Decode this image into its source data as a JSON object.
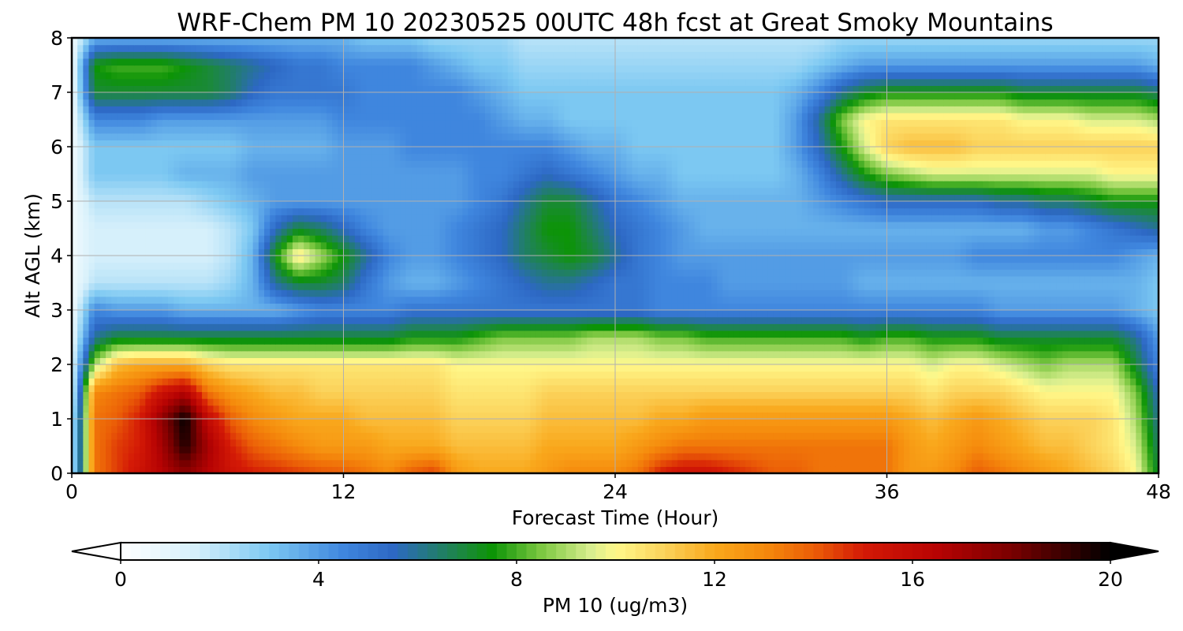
{
  "chart_data": {
    "type": "heatmap",
    "title": "WRF-Chem PM 10  20230525 00UTC 48h fcst at Great Smoky Mountains",
    "xlabel": "Forecast Time (Hour)",
    "ylabel": "Alt AGL (km)",
    "xlim": [
      0,
      48
    ],
    "ylim": [
      0,
      8
    ],
    "xticks": [
      0,
      12,
      24,
      36,
      48
    ],
    "yticks": [
      0,
      1,
      2,
      3,
      4,
      5,
      6,
      7,
      8
    ],
    "grid": true,
    "x": [
      0,
      1,
      2,
      3,
      4,
      5,
      6,
      7,
      8,
      9,
      10,
      11,
      12,
      13,
      14,
      15,
      16,
      17,
      18,
      19,
      20,
      21,
      22,
      23,
      24,
      25,
      26,
      27,
      28,
      29,
      30,
      31,
      32,
      33,
      34,
      35,
      36,
      37,
      38,
      39,
      40,
      41,
      42,
      43,
      44,
      45,
      46,
      47,
      48
    ],
    "y": [
      0,
      0.5,
      1,
      1.5,
      2,
      2.5,
      3,
      3.5,
      4,
      4.5,
      5,
      5.5,
      6,
      6.5,
      7,
      7.5,
      8
    ],
    "z": [
      [
        1.5,
        13.5,
        14.5,
        15.5,
        16.5,
        17.5,
        16.5,
        15.5,
        15.0,
        14.8,
        14.5,
        14.2,
        14.0,
        13.5,
        13.0,
        14.0,
        14.5,
        12.5,
        12.0,
        12.0,
        12.0,
        12.5,
        13.0,
        13.0,
        13.0,
        13.5,
        15.0,
        15.5,
        15.5,
        15.0,
        14.5,
        14.0,
        14.0,
        13.5,
        13.5,
        13.5,
        13.5,
        12.5,
        12.5,
        13.0,
        14.0,
        13.5,
        13.0,
        12.5,
        12.0,
        11.5,
        11.0,
        10.0,
        7.0
      ],
      [
        1.5,
        13.5,
        14.5,
        15.0,
        17.0,
        19.5,
        17.0,
        15.0,
        14.0,
        13.5,
        13.0,
        12.5,
        12.5,
        12.5,
        12.0,
        12.0,
        12.0,
        11.5,
        11.5,
        11.5,
        11.5,
        12.0,
        12.0,
        12.0,
        12.0,
        12.5,
        13.0,
        13.5,
        13.5,
        13.5,
        13.5,
        13.5,
        13.5,
        13.5,
        13.5,
        13.5,
        13.5,
        12.5,
        12.0,
        12.5,
        13.0,
        12.5,
        12.0,
        11.5,
        11.5,
        11.0,
        10.5,
        9.5,
        6.5
      ],
      [
        1.5,
        13.5,
        14.0,
        15.0,
        17.5,
        20.0,
        16.0,
        14.0,
        13.0,
        12.5,
        12.0,
        12.0,
        12.0,
        11.5,
        11.5,
        11.5,
        11.5,
        11.0,
        11.0,
        11.0,
        11.0,
        11.5,
        11.5,
        11.5,
        11.5,
        11.5,
        12.0,
        12.0,
        12.5,
        12.5,
        12.5,
        12.5,
        12.5,
        12.5,
        12.5,
        12.5,
        12.5,
        12.0,
        11.5,
        12.0,
        12.5,
        12.0,
        11.5,
        11.0,
        11.0,
        11.0,
        10.5,
        9.0,
        6.0
      ],
      [
        1.0,
        13.0,
        13.5,
        14.0,
        15.5,
        16.5,
        13.5,
        12.5,
        12.0,
        11.5,
        11.5,
        11.0,
        11.0,
        11.0,
        11.0,
        11.0,
        11.0,
        10.5,
        10.5,
        10.5,
        10.5,
        11.0,
        11.0,
        11.0,
        11.0,
        11.0,
        11.0,
        11.0,
        11.0,
        11.0,
        11.0,
        11.0,
        11.0,
        11.0,
        11.0,
        11.0,
        11.0,
        11.0,
        10.5,
        11.0,
        11.0,
        11.0,
        10.5,
        10.0,
        10.0,
        10.0,
        10.0,
        8.5,
        5.5
      ],
      [
        1.0,
        9.0,
        11.5,
        12.0,
        12.0,
        12.0,
        11.0,
        10.5,
        10.5,
        10.5,
        10.5,
        10.5,
        10.5,
        10.5,
        10.5,
        10.5,
        10.5,
        10.0,
        10.0,
        10.0,
        10.0,
        10.0,
        10.0,
        10.0,
        10.0,
        10.0,
        10.0,
        10.0,
        10.0,
        10.0,
        10.0,
        10.0,
        10.0,
        10.0,
        10.0,
        10.0,
        10.0,
        10.0,
        9.5,
        10.0,
        10.0,
        9.5,
        9.0,
        8.5,
        9.0,
        9.0,
        9.0,
        7.0,
        4.5
      ],
      [
        0.8,
        6.0,
        7.0,
        7.0,
        7.0,
        7.0,
        7.0,
        7.0,
        7.0,
        7.0,
        7.0,
        7.0,
        7.0,
        7.0,
        7.0,
        7.5,
        7.5,
        7.5,
        8.0,
        8.5,
        8.5,
        8.5,
        8.5,
        9.0,
        9.0,
        9.0,
        8.5,
        8.5,
        8.0,
        8.0,
        8.0,
        8.0,
        8.0,
        8.0,
        8.0,
        7.5,
        8.0,
        8.0,
        7.5,
        7.5,
        7.5,
        7.0,
        7.0,
        7.0,
        7.0,
        7.0,
        7.0,
        6.0,
        4.0
      ],
      [
        0.5,
        4.5,
        4.0,
        4.0,
        4.0,
        3.5,
        3.5,
        3.5,
        3.5,
        3.5,
        4.0,
        4.5,
        4.5,
        4.5,
        4.5,
        5.0,
        5.0,
        5.0,
        5.0,
        5.0,
        5.0,
        5.0,
        5.0,
        5.0,
        5.0,
        5.0,
        4.5,
        4.5,
        4.5,
        4.5,
        4.5,
        4.5,
        4.5,
        4.5,
        4.5,
        4.5,
        4.5,
        4.5,
        4.5,
        4.5,
        4.5,
        4.0,
        4.0,
        4.0,
        4.0,
        4.0,
        4.0,
        3.5,
        3.0
      ],
      [
        0.5,
        2.0,
        2.0,
        2.0,
        2.0,
        2.0,
        2.0,
        2.5,
        3.5,
        6.0,
        7.0,
        7.0,
        6.5,
        5.0,
        4.0,
        3.5,
        3.5,
        4.0,
        4.5,
        5.0,
        5.5,
        6.0,
        6.0,
        5.5,
        5.0,
        5.0,
        4.5,
        4.5,
        4.5,
        4.0,
        4.0,
        4.0,
        4.0,
        4.0,
        4.0,
        3.5,
        3.5,
        3.5,
        3.5,
        3.5,
        3.5,
        3.5,
        3.5,
        3.5,
        3.5,
        3.5,
        3.5,
        3.5,
        3.0
      ],
      [
        0.5,
        1.5,
        1.5,
        1.5,
        1.5,
        1.5,
        1.5,
        2.0,
        3.5,
        7.5,
        10.5,
        9.0,
        7.5,
        6.0,
        4.5,
        4.0,
        4.0,
        4.5,
        5.0,
        5.5,
        6.5,
        7.0,
        7.5,
        7.0,
        6.0,
        5.0,
        4.5,
        4.0,
        4.0,
        4.0,
        4.0,
        4.0,
        4.0,
        4.0,
        4.0,
        4.0,
        4.0,
        4.0,
        4.0,
        4.0,
        4.5,
        4.5,
        4.5,
        4.5,
        4.5,
        4.5,
        4.5,
        4.0,
        3.5
      ],
      [
        0.5,
        1.5,
        1.5,
        1.5,
        1.5,
        1.5,
        1.5,
        2.0,
        3.0,
        5.5,
        7.0,
        6.5,
        5.5,
        4.5,
        4.0,
        4.0,
        4.0,
        4.5,
        5.0,
        5.5,
        6.5,
        7.5,
        7.5,
        6.5,
        5.5,
        5.0,
        4.5,
        4.0,
        3.5,
        3.5,
        3.5,
        3.5,
        3.5,
        3.5,
        3.5,
        3.5,
        3.5,
        3.5,
        3.5,
        3.5,
        3.5,
        3.5,
        3.5,
        4.0,
        4.0,
        4.5,
        5.0,
        5.5,
        6.0
      ],
      [
        0.5,
        2.0,
        2.0,
        2.0,
        2.0,
        2.0,
        2.5,
        3.0,
        3.5,
        4.0,
        4.0,
        4.0,
        4.0,
        4.0,
        4.0,
        4.0,
        4.0,
        4.0,
        4.5,
        5.0,
        6.0,
        7.0,
        7.0,
        6.0,
        5.0,
        4.5,
        4.0,
        3.5,
        3.5,
        3.5,
        3.5,
        3.5,
        3.5,
        4.0,
        4.5,
        5.0,
        5.5,
        5.5,
        5.5,
        5.5,
        5.5,
        6.0,
        6.0,
        6.5,
        6.5,
        7.0,
        7.5,
        7.5,
        7.5
      ],
      [
        0.5,
        3.0,
        3.0,
        3.0,
        3.0,
        3.5,
        3.5,
        3.5,
        4.0,
        4.0,
        4.0,
        4.0,
        4.0,
        4.0,
        4.0,
        4.0,
        4.0,
        4.0,
        4.5,
        4.5,
        5.0,
        5.5,
        5.0,
        4.5,
        4.0,
        3.5,
        3.5,
        3.0,
        3.0,
        3.0,
        3.0,
        3.0,
        3.5,
        4.5,
        6.0,
        7.5,
        8.5,
        9.0,
        9.5,
        9.5,
        9.5,
        9.5,
        9.5,
        9.5,
        9.5,
        9.5,
        10.0,
        10.0,
        10.0
      ],
      [
        0.5,
        3.0,
        3.0,
        3.0,
        3.0,
        3.0,
        3.0,
        3.0,
        3.5,
        3.5,
        3.5,
        3.5,
        4.0,
        4.0,
        4.0,
        4.5,
        4.5,
        4.5,
        4.5,
        4.5,
        4.5,
        4.5,
        4.0,
        3.5,
        3.5,
        3.0,
        3.0,
        3.0,
        3.0,
        3.0,
        3.0,
        3.0,
        4.0,
        5.5,
        7.5,
        9.5,
        11.0,
        11.5,
        11.5,
        11.5,
        11.0,
        11.0,
        11.0,
        11.0,
        11.0,
        11.0,
        11.0,
        11.0,
        11.0
      ],
      [
        0.5,
        4.5,
        4.5,
        4.5,
        4.0,
        4.0,
        4.0,
        4.0,
        4.0,
        4.0,
        4.0,
        4.0,
        4.5,
        4.5,
        4.5,
        4.5,
        4.5,
        4.5,
        4.5,
        4.0,
        3.5,
        3.5,
        3.0,
        3.0,
        3.0,
        3.0,
        3.0,
        3.0,
        3.0,
        3.0,
        3.0,
        3.0,
        4.0,
        6.0,
        8.5,
        10.0,
        10.5,
        10.5,
        10.5,
        10.5,
        10.5,
        10.5,
        10.0,
        10.0,
        10.0,
        9.5,
        9.5,
        9.5,
        9.0
      ],
      [
        0.5,
        7.0,
        7.0,
        7.0,
        7.0,
        7.0,
        7.0,
        6.5,
        5.5,
        5.0,
        5.0,
        5.0,
        5.0,
        4.5,
        4.5,
        4.5,
        4.5,
        4.5,
        4.0,
        3.5,
        3.0,
        3.0,
        3.0,
        3.0,
        3.0,
        3.0,
        3.0,
        3.0,
        3.0,
        3.0,
        3.0,
        3.0,
        3.5,
        4.5,
        6.0,
        7.0,
        7.5,
        7.5,
        7.5,
        7.5,
        7.5,
        7.5,
        7.0,
        7.0,
        7.0,
        7.0,
        7.0,
        7.0,
        6.5
      ],
      [
        0.5,
        7.5,
        8.0,
        8.0,
        8.0,
        7.5,
        7.0,
        6.5,
        6.0,
        5.5,
        5.0,
        5.0,
        4.5,
        4.5,
        4.5,
        4.5,
        4.0,
        3.5,
        3.0,
        3.0,
        2.5,
        2.5,
        2.5,
        2.5,
        2.5,
        2.5,
        2.5,
        2.5,
        2.5,
        2.5,
        2.5,
        2.5,
        2.5,
        3.0,
        3.5,
        4.0,
        4.0,
        4.0,
        4.0,
        4.0,
        4.0,
        4.0,
        4.0,
        4.0,
        4.0,
        4.0,
        4.0,
        4.0,
        3.5
      ],
      [
        0.5,
        3.5,
        3.5,
        3.5,
        3.5,
        3.5,
        3.5,
        3.5,
        3.5,
        3.5,
        3.5,
        3.5,
        3.5,
        3.0,
        3.0,
        3.0,
        2.5,
        2.5,
        2.5,
        2.5,
        2.0,
        2.0,
        2.0,
        2.0,
        2.0,
        2.0,
        2.0,
        2.0,
        2.0,
        2.0,
        2.0,
        2.0,
        2.0,
        2.0,
        2.5,
        2.5,
        2.5,
        2.5,
        2.5,
        2.5,
        2.5,
        2.5,
        2.5,
        2.5,
        2.5,
        2.5,
        2.5,
        2.5,
        2.5
      ]
    ],
    "colorbar": {
      "label": "PM 10  (ug/m3)",
      "min": 0,
      "max": 20,
      "ticks": [
        0,
        4,
        8,
        12,
        16,
        20
      ],
      "extend": "both",
      "color_stops": [
        {
          "value": 0,
          "color": "#ffffff"
        },
        {
          "value": 1.5,
          "color": "#d6f0fb"
        },
        {
          "value": 3,
          "color": "#7cc8f2"
        },
        {
          "value": 4.5,
          "color": "#3f86de"
        },
        {
          "value": 5.5,
          "color": "#2d68c4"
        },
        {
          "value": 7,
          "color": "#1a8a36"
        },
        {
          "value": 7.5,
          "color": "#0c9406"
        },
        {
          "value": 8.5,
          "color": "#7cc741"
        },
        {
          "value": 9.5,
          "color": "#d8ee8e"
        },
        {
          "value": 10,
          "color": "#fff88a"
        },
        {
          "value": 11,
          "color": "#fbd25a"
        },
        {
          "value": 12,
          "color": "#f9a81c"
        },
        {
          "value": 13,
          "color": "#f58a0c"
        },
        {
          "value": 14,
          "color": "#eb5e07"
        },
        {
          "value": 15,
          "color": "#d41a06"
        },
        {
          "value": 16.5,
          "color": "#b70303"
        },
        {
          "value": 18,
          "color": "#7a0000"
        },
        {
          "value": 20,
          "color": "#000000"
        }
      ]
    }
  }
}
